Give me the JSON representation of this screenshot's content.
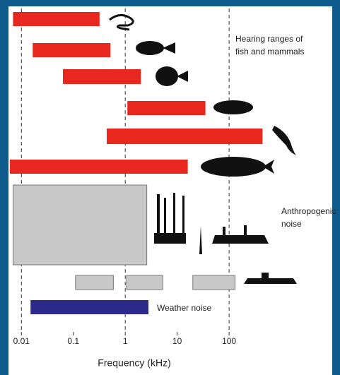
{
  "chart_data": {
    "type": "range_bar",
    "xlabel": "Frequency (kHz)",
    "xlim": [
      0.006,
      10000
    ],
    "log_x": true,
    "xticks": [
      0.01,
      0.1,
      1,
      10,
      100
    ],
    "reference_lines": [
      0.01,
      1,
      100
    ],
    "bars": [
      {
        "low": 0.0069,
        "high": 0.32,
        "color": "#e8281e"
      },
      {
        "low": 0.0165,
        "high": 0.52,
        "color": "#e8281e"
      },
      {
        "low": 0.063,
        "high": 2,
        "color": "#e8281e"
      },
      {
        "low": 1.1,
        "high": 35,
        "color": "#e8281e"
      },
      {
        "low": 0.44,
        "high": 440,
        "color": "#e8281e"
      },
      {
        "low": 0.006,
        "high": 16,
        "color": "#e8281e"
      },
      {
        "low": 0.0069,
        "high": 2.6,
        "color": "#c8c8c8"
      },
      {
        "low": 0.11,
        "high": 0.59,
        "color": "#c8c8c8"
      },
      {
        "low": 1.06,
        "high": 5.3,
        "color": "#c8c8c8"
      },
      {
        "low": 20,
        "high": 130,
        "color": "#c8c8c8"
      },
      {
        "low": 0.015,
        "high": 2.8,
        "color": "#2b2a8a"
      }
    ],
    "annotations": [
      "Hearing ranges of",
      "fish and mammals",
      "Anthropogenic",
      "noise",
      "Weather noise"
    ]
  }
}
